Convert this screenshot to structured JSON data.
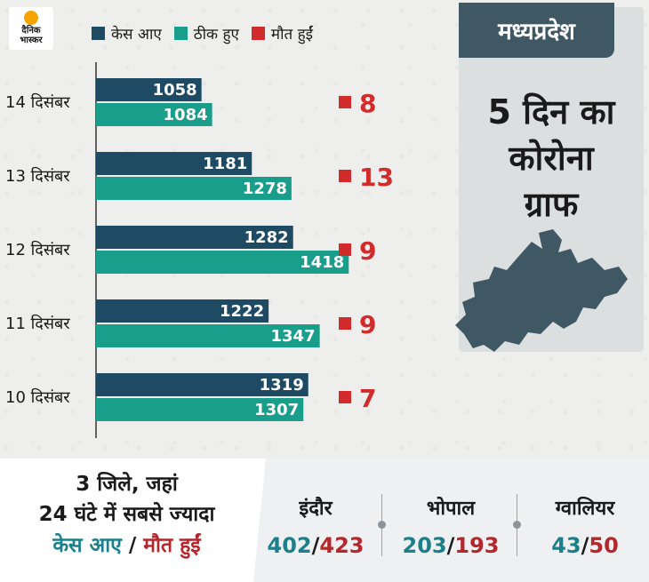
{
  "logo": {
    "line1": "दैनिक",
    "line2": "भास्कर"
  },
  "colors": {
    "cases": "#1f4a64",
    "recovered": "#1a9e8c",
    "deaths": "#d22b2b",
    "slate": "#405864"
  },
  "legend": [
    {
      "label": "केस आए",
      "color": "#1f4a64"
    },
    {
      "label": "ठीक हुए",
      "color": "#1a9e8c"
    },
    {
      "label": "मौत हुईं",
      "color": "#d22b2b"
    }
  ],
  "region": "मध्यप्रदेश",
  "right_title": [
    "5 दिन का",
    "कोरोना",
    "ग्राफ"
  ],
  "chart_data": {
    "type": "bar",
    "orientation": "horizontal",
    "categories": [
      "14 दिसंबर",
      "13 दिसंबर",
      "12 दिसंबर",
      "11 दिसंबर",
      "10 दिसंबर"
    ],
    "series": [
      {
        "name": "केस आए",
        "values": [
          1058,
          1181,
          1282,
          1222,
          1319
        ]
      },
      {
        "name": "ठीक हुए",
        "values": [
          1084,
          1278,
          1418,
          1347,
          1307
        ]
      },
      {
        "name": "मौत हुईं",
        "values": [
          8,
          13,
          9,
          9,
          7
        ]
      }
    ],
    "legend_position": "top",
    "grid": false
  },
  "bottom": {
    "line1": "3 जिले, जहां",
    "line2": "24 घंटे में सबसे ज्यादा",
    "line3_cases": "केस आए",
    "line3_sep": " / ",
    "line3_deaths": "मौत हुईं",
    "cities": [
      {
        "name": "इंदौर",
        "cases": "402",
        "deaths": "423"
      },
      {
        "name": "भोपाल",
        "cases": "203",
        "deaths": "193"
      },
      {
        "name": "ग्वालियर",
        "cases": "43",
        "deaths": "50"
      }
    ],
    "slash": "/"
  }
}
